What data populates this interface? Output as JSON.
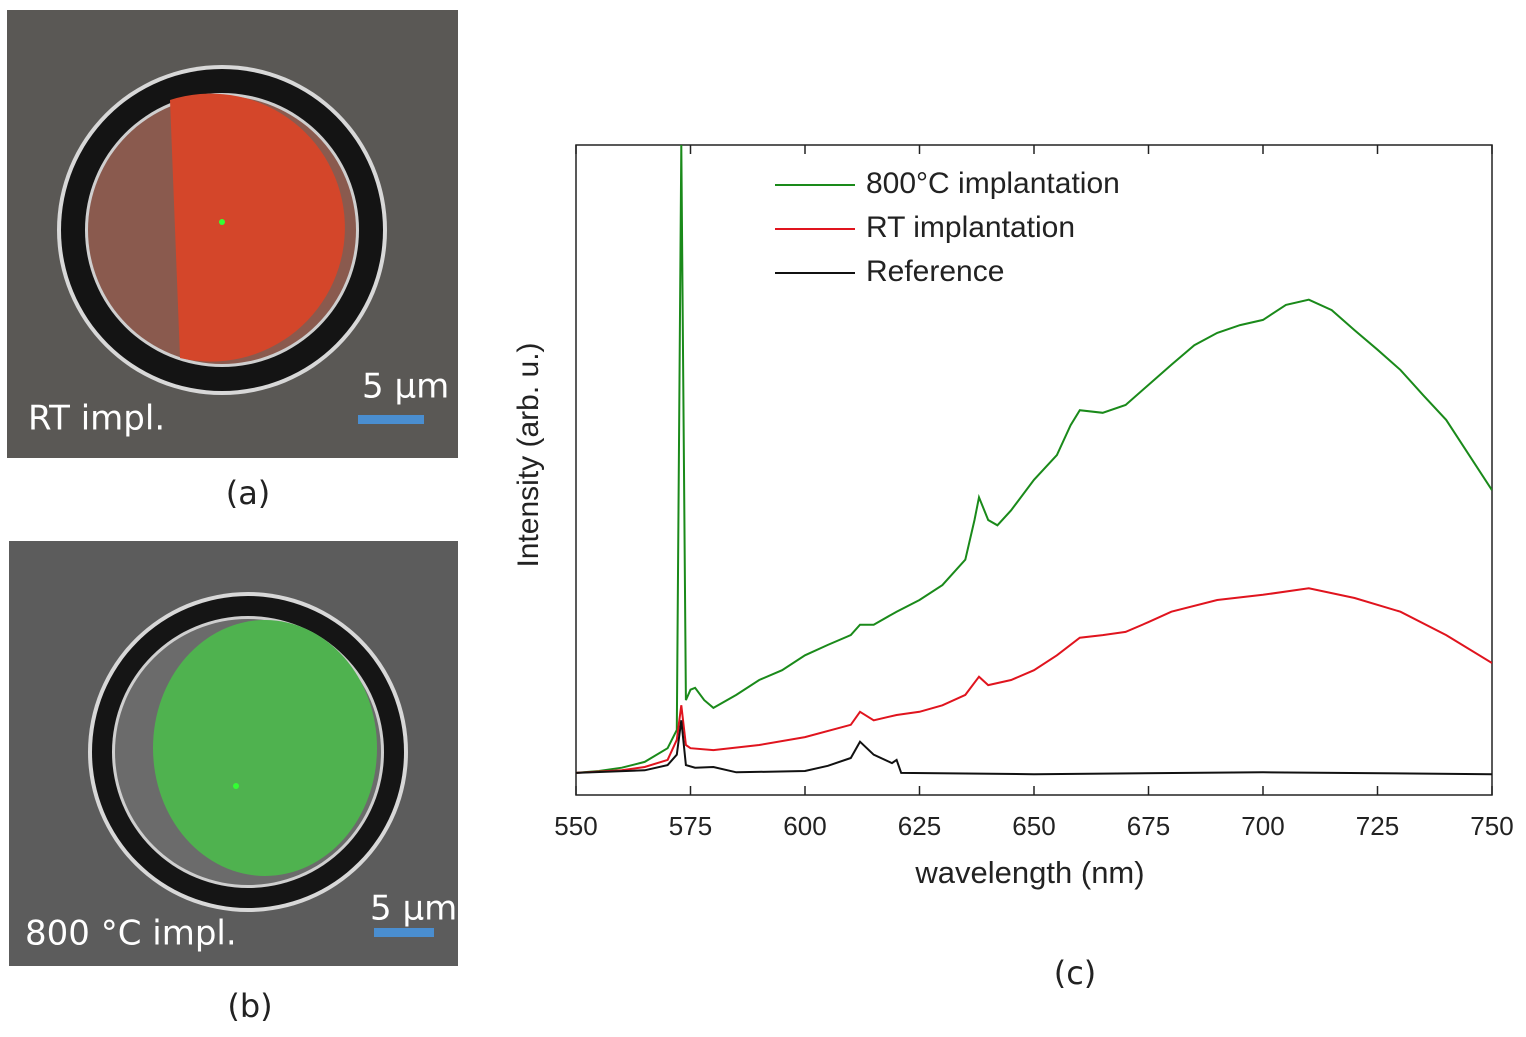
{
  "panels": [
    {
      "label": "(a)",
      "caption": "RT impl.",
      "scale_bar": "5 µm"
    },
    {
      "label": "(b)",
      "caption": "800 °C impl.",
      "scale_bar": "5 µm"
    }
  ],
  "chart_data": {
    "type": "line",
    "panel_label": "(c)",
    "x_label": "wavelength (nm)",
    "y_label": "Intensity (arb. u.)",
    "xlim": [
      550,
      750
    ],
    "xticks": [
      550,
      575,
      600,
      625,
      650,
      675,
      700,
      725,
      750
    ],
    "ylim": [
      0,
      100
    ],
    "legend": "upper-left",
    "series": [
      {
        "name": "800°C implantation",
        "color": "#1a8a1a",
        "x": [
          550,
          555,
          560,
          565,
          570,
          572,
          573,
          574,
          575,
          576,
          578,
          580,
          585,
          590,
          595,
          600,
          605,
          610,
          612,
          615,
          620,
          625,
          630,
          635,
          637,
          638,
          640,
          642,
          645,
          650,
          655,
          658,
          660,
          665,
          670,
          675,
          680,
          685,
          690,
          695,
          700,
          705,
          710,
          715,
          720,
          725,
          730,
          735,
          740,
          745,
          750
        ],
        "values": [
          3.4,
          3.7,
          4.2,
          5.1,
          7.2,
          10,
          100,
          14.6,
          16.2,
          16.5,
          14.6,
          13.4,
          15.4,
          17.7,
          19.2,
          21.5,
          23.1,
          24.6,
          26.2,
          26.2,
          28.2,
          30,
          32.3,
          36.2,
          42.3,
          45.8,
          42.3,
          41.5,
          43.8,
          48.5,
          52.3,
          56.9,
          59.2,
          58.8,
          60,
          63.1,
          66.2,
          69.2,
          71.1,
          72.3,
          73.1,
          75.4,
          76.2,
          74.6,
          71.5,
          68.5,
          65.4,
          61.5,
          57.7,
          52.3,
          46.9
        ]
      },
      {
        "name": "RT implantation",
        "color": "#e0141e",
        "x": [
          550,
          560,
          565,
          570,
          572,
          573,
          574,
          575,
          580,
          590,
          600,
          610,
          612,
          615,
          620,
          625,
          630,
          635,
          638,
          640,
          645,
          650,
          655,
          660,
          665,
          670,
          675,
          680,
          690,
          700,
          710,
          720,
          730,
          740,
          750
        ],
        "values": [
          3.4,
          3.8,
          4.3,
          5.4,
          8.5,
          13.8,
          7.7,
          7.2,
          6.9,
          7.7,
          8.9,
          10.8,
          12.8,
          11.5,
          12.3,
          12.8,
          13.8,
          15.4,
          18.2,
          16.9,
          17.7,
          19.2,
          21.5,
          24.2,
          24.6,
          25.1,
          26.6,
          28.2,
          30,
          30.8,
          31.8,
          30.3,
          28.2,
          24.6,
          20.3
        ]
      },
      {
        "name": "Reference",
        "color": "#111111",
        "x": [
          550,
          565,
          570,
          572,
          573,
          574,
          576,
          580,
          585,
          600,
          605,
          610,
          612,
          615,
          619,
          620,
          621,
          650,
          700,
          750
        ],
        "values": [
          3.4,
          3.8,
          4.6,
          6.2,
          11.5,
          4.6,
          4.2,
          4.3,
          3.5,
          3.7,
          4.5,
          5.7,
          8.2,
          6.2,
          4.9,
          5.4,
          3.4,
          3.2,
          3.5,
          3.2
        ]
      }
    ]
  }
}
